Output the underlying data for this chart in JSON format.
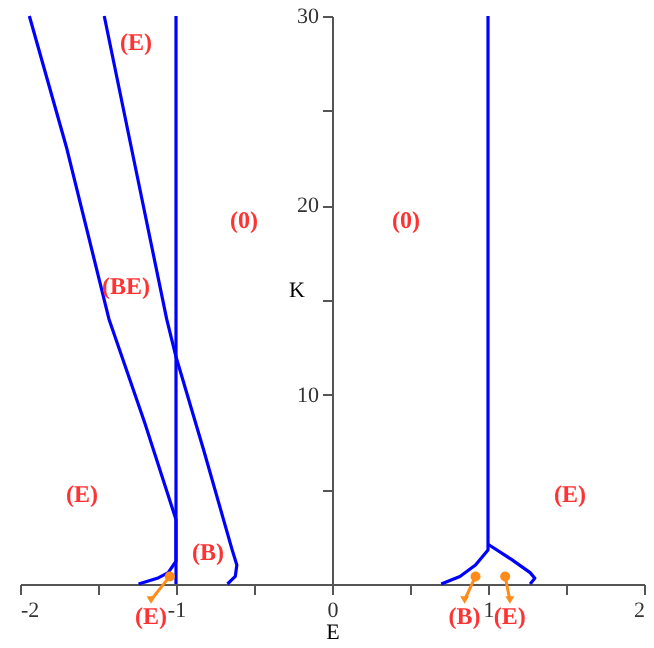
{
  "chart_data": {
    "type": "line",
    "xlabel": "E",
    "ylabel": "K",
    "xlim": [
      -2,
      2
    ],
    "ylim": [
      0,
      30
    ],
    "xticks": [
      -2,
      {
        "value": -1.5,
        "label": null
      },
      -1,
      {
        "value": -0.5,
        "label": null
      },
      0,
      {
        "value": 0.5,
        "label": null
      },
      1,
      {
        "value": 1.5,
        "label": null
      },
      2
    ],
    "yticks": [
      {
        "value": 5,
        "label": null
      },
      10,
      {
        "value": 15,
        "label": null
      },
      20,
      {
        "value": 25,
        "label": null
      },
      30
    ],
    "marker": "none",
    "line_style": "solid",
    "series": [
      {
        "color": "#0000ff",
        "x": [
          -1.94,
          -1.7,
          -1.43,
          -1.2,
          -1.0,
          -1.0,
          -1.05,
          -1.12,
          -1.24
        ],
        "values": [
          30,
          23,
          14,
          8.5,
          3.4,
          1.2,
          0.6,
          0.3,
          0
        ]
      },
      {
        "color": "#0000ff",
        "x": [
          -1.46,
          -1.26,
          -1.06,
          -1.0,
          -0.82,
          -0.64,
          -0.61,
          -0.62,
          -0.67
        ],
        "values": [
          30,
          22,
          14,
          12,
          7,
          1.8,
          1.0,
          0.4,
          0
        ]
      },
      {
        "color": "#0000ff",
        "x": [
          -1,
          -1
        ],
        "values": [
          0,
          30
        ]
      },
      {
        "color": "#0000ff",
        "x": [
          0.7,
          0.82,
          0.92,
          1,
          1
        ],
        "values": [
          0,
          0.4,
          1.0,
          1.8,
          30
        ]
      },
      {
        "color": "#0000ff",
        "x": [
          1,
          1.15,
          1.27,
          1.3,
          1.27
        ],
        "values": [
          2.1,
          1.3,
          0.6,
          0.3,
          0
        ]
      }
    ],
    "annotations": [
      "(E)",
      "(0)",
      "(BE)",
      "(E)",
      "(B)",
      "(0)",
      "(E)",
      {
        "text": "(E)",
        "x": -1.04,
        "y": 0.4
      },
      {
        "text": "(B)",
        "x": 0.92,
        "y": 0.4
      },
      {
        "text": "(E)",
        "x": 1.11,
        "y": 0.4
      }
    ]
  }
}
